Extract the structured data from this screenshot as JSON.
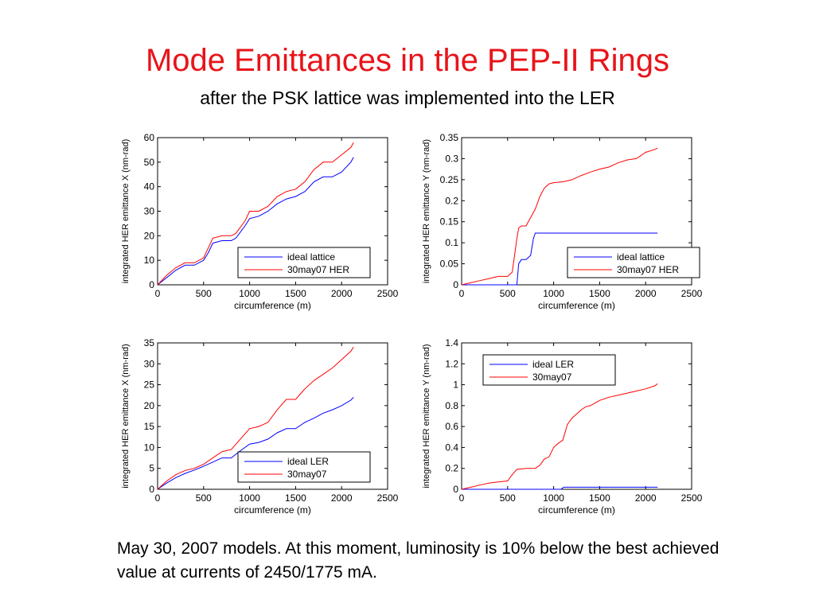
{
  "slide": {
    "title": "Mode Emittances in the PEP-II Rings",
    "subtitle": "after the PSK lattice was implemented into the LER",
    "caption": "May 30, 2007 models. At this moment, luminosity is 10% below the best achieved value at currents of 2450/1775 mA."
  },
  "colors": {
    "title": "#e8141a",
    "ideal": "#0000ff",
    "measured": "#ff0000"
  },
  "chart_data": [
    {
      "type": "line",
      "xlabel": "circumference (m)",
      "ylabel": "integrated HER emittance X (nm-rad)",
      "xlim": [
        0,
        2500
      ],
      "ylim": [
        0,
        60
      ],
      "xticks": [
        0,
        500,
        1000,
        1500,
        2000,
        2500
      ],
      "yticks": [
        0,
        10,
        20,
        30,
        40,
        50,
        60
      ],
      "legend_position": "bottom-right",
      "series": [
        {
          "name": "ideal lattice",
          "color": "#0000ff",
          "x": [
            0,
            100,
            200,
            300,
            400,
            500,
            550,
            600,
            700,
            800,
            850,
            950,
            1000,
            1100,
            1200,
            1300,
            1400,
            1500,
            1600,
            1700,
            1800,
            1900,
            2000,
            2100,
            2130
          ],
          "y": [
            0,
            3,
            6,
            8,
            8,
            10,
            13,
            17,
            18,
            18,
            19,
            24,
            27,
            28,
            30,
            33,
            35,
            36,
            38,
            42,
            44,
            44,
            46,
            50,
            52
          ]
        },
        {
          "name": "30may07 HER",
          "color": "#ff0000",
          "x": [
            0,
            100,
            200,
            300,
            400,
            500,
            550,
            600,
            700,
            800,
            850,
            950,
            1000,
            1100,
            1200,
            1300,
            1400,
            1500,
            1600,
            1700,
            1800,
            1900,
            2000,
            2100,
            2130
          ],
          "y": [
            0,
            4,
            7,
            9,
            9,
            11,
            15,
            19,
            20,
            20,
            21,
            26,
            30,
            30,
            32,
            36,
            38,
            39,
            42,
            47,
            50,
            50,
            53,
            56,
            58
          ]
        }
      ]
    },
    {
      "type": "line",
      "xlabel": "circumference (m)",
      "ylabel": "integrated HER emittance Y (nm-rad)",
      "xlim": [
        0,
        2500
      ],
      "ylim": [
        0,
        0.35
      ],
      "xticks": [
        0,
        500,
        1000,
        1500,
        2000,
        2500
      ],
      "yticks": [
        0,
        0.05,
        0.1,
        0.15,
        0.2,
        0.25,
        0.3,
        0.35
      ],
      "legend_position": "bottom-right",
      "series": [
        {
          "name": "ideal lattice",
          "color": "#0000ff",
          "x": [
            0,
            600,
            620,
            650,
            700,
            750,
            780,
            800,
            2130
          ],
          "y": [
            0,
            0,
            0.05,
            0.06,
            0.06,
            0.07,
            0.11,
            0.123,
            0.123
          ]
        },
        {
          "name": "30may07 HER",
          "color": "#ff0000",
          "x": [
            0,
            100,
            200,
            300,
            400,
            500,
            550,
            600,
            620,
            650,
            700,
            800,
            850,
            900,
            950,
            1000,
            1100,
            1200,
            1300,
            1400,
            1500,
            1600,
            1700,
            1800,
            1900,
            2000,
            2100,
            2130
          ],
          "y": [
            0,
            0.005,
            0.01,
            0.015,
            0.02,
            0.02,
            0.03,
            0.11,
            0.135,
            0.14,
            0.14,
            0.18,
            0.21,
            0.23,
            0.24,
            0.243,
            0.245,
            0.25,
            0.26,
            0.268,
            0.275,
            0.28,
            0.29,
            0.297,
            0.3,
            0.315,
            0.322,
            0.325
          ]
        }
      ]
    },
    {
      "type": "line",
      "xlabel": "circumference (m)",
      "ylabel": "integrated HER emittance X (nm-rad)",
      "xlim": [
        0,
        2500
      ],
      "ylim": [
        0,
        35
      ],
      "xticks": [
        0,
        500,
        1000,
        1500,
        2000,
        2500
      ],
      "yticks": [
        0,
        5,
        10,
        15,
        20,
        25,
        30,
        35
      ],
      "legend_position": "bottom-right",
      "series": [
        {
          "name": "ideal LER",
          "color": "#0000ff",
          "x": [
            0,
            100,
            200,
            300,
            400,
            500,
            600,
            700,
            800,
            900,
            1000,
            1100,
            1200,
            1300,
            1400,
            1500,
            1600,
            1700,
            1800,
            1900,
            2000,
            2100,
            2130
          ],
          "y": [
            0,
            1.5,
            2.8,
            3.8,
            4.6,
            5.5,
            6.5,
            7.5,
            7.5,
            9.2,
            10.8,
            11.2,
            12,
            13.5,
            14.5,
            14.5,
            16,
            17,
            18.2,
            19,
            20,
            21.3,
            22
          ]
        },
        {
          "name": "30may07",
          "color": "#ff0000",
          "x": [
            0,
            100,
            200,
            300,
            400,
            500,
            600,
            700,
            800,
            900,
            1000,
            1100,
            1200,
            1300,
            1400,
            1500,
            1600,
            1700,
            1800,
            1900,
            2000,
            2100,
            2130
          ],
          "y": [
            0,
            2,
            3.5,
            4.5,
            5,
            6,
            7.5,
            9,
            9.5,
            12,
            14.5,
            15,
            16,
            19,
            21.5,
            21.5,
            24,
            26,
            27.5,
            29,
            31,
            33,
            34
          ]
        }
      ]
    },
    {
      "type": "line",
      "xlabel": "circumference (m)",
      "ylabel": "integrated HER emittance Y (nm-rad)",
      "xlim": [
        0,
        2500
      ],
      "ylim": [
        0,
        1.4
      ],
      "xticks": [
        0,
        500,
        1000,
        1500,
        2000,
        2500
      ],
      "yticks": [
        0,
        0.2,
        0.4,
        0.6,
        0.8,
        1,
        1.2,
        1.4
      ],
      "legend_position": "top-left",
      "series": [
        {
          "name": "ideal LER",
          "color": "#0000ff",
          "x": [
            0,
            1080,
            1110,
            2130
          ],
          "y": [
            0,
            0,
            0.02,
            0.02
          ]
        },
        {
          "name": "30may07",
          "color": "#ff0000",
          "x": [
            0,
            100,
            200,
            300,
            400,
            500,
            550,
            600,
            700,
            800,
            850,
            900,
            950,
            1000,
            1050,
            1100,
            1150,
            1200,
            1250,
            1300,
            1350,
            1400,
            1500,
            1600,
            1700,
            1800,
            1900,
            2000,
            2100,
            2130
          ],
          "y": [
            0,
            0.02,
            0.04,
            0.06,
            0.07,
            0.08,
            0.14,
            0.19,
            0.2,
            0.2,
            0.23,
            0.29,
            0.31,
            0.4,
            0.44,
            0.47,
            0.62,
            0.68,
            0.72,
            0.76,
            0.79,
            0.8,
            0.85,
            0.88,
            0.9,
            0.92,
            0.94,
            0.96,
            0.99,
            1.01
          ]
        }
      ]
    }
  ]
}
